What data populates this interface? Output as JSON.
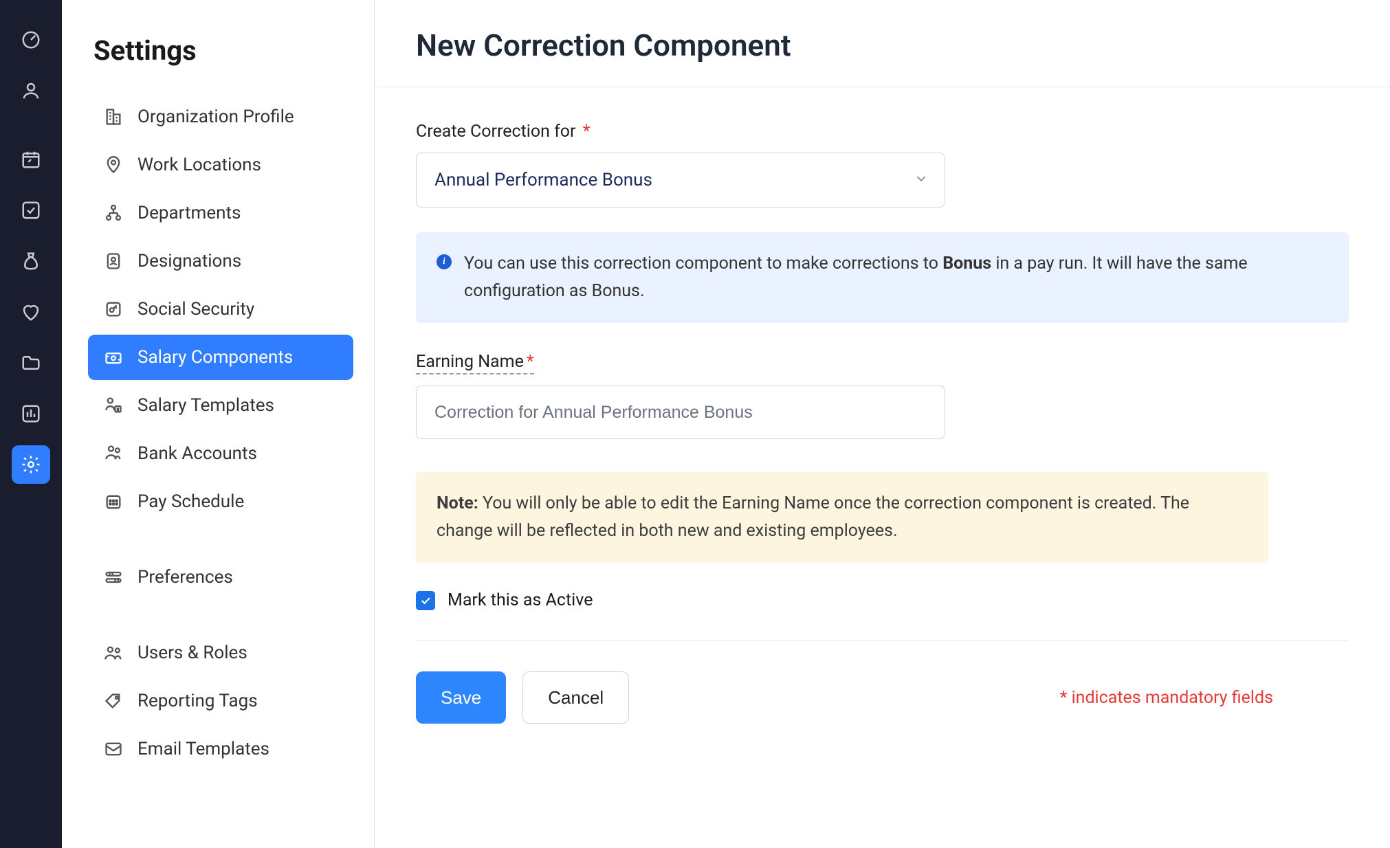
{
  "colors": {
    "rail_bg": "#1a1d2e",
    "accent": "#307dff",
    "info_bg": "#eaf2ff",
    "note_bg": "#fdf5e0",
    "required": "#e53935",
    "border": "#d0d5dd",
    "select_text": "#1e2b5a"
  },
  "rail": {
    "items": [
      {
        "name": "dashboard",
        "active": false
      },
      {
        "name": "people",
        "active": false
      },
      {
        "name": "calendar",
        "active": false
      },
      {
        "name": "approvals",
        "active": false
      },
      {
        "name": "payroll",
        "active": false
      },
      {
        "name": "benefits",
        "active": false
      },
      {
        "name": "documents",
        "active": false
      },
      {
        "name": "reports",
        "active": false
      },
      {
        "name": "settings",
        "active": true
      }
    ]
  },
  "sidebar": {
    "title": "Settings",
    "groups": [
      [
        {
          "label": "Organization Profile",
          "icon": "building"
        },
        {
          "label": "Work Locations",
          "icon": "pin"
        },
        {
          "label": "Departments",
          "icon": "org"
        },
        {
          "label": "Designations",
          "icon": "badge"
        },
        {
          "label": "Social Security",
          "icon": "key"
        },
        {
          "label": "Salary Components",
          "icon": "money",
          "active": true
        },
        {
          "label": "Salary Templates",
          "icon": "template"
        },
        {
          "label": "Bank Accounts",
          "icon": "bank"
        },
        {
          "label": "Pay Schedule",
          "icon": "schedule"
        }
      ],
      [
        {
          "label": "Preferences",
          "icon": "sliders"
        }
      ],
      [
        {
          "label": "Users & Roles",
          "icon": "users"
        },
        {
          "label": "Reporting Tags",
          "icon": "tag"
        },
        {
          "label": "Email Templates",
          "icon": "mail"
        }
      ]
    ]
  },
  "page": {
    "title": "New Correction Component",
    "create_for_label": "Create Correction for",
    "create_for_value": "Annual Performance Bonus",
    "info_prefix": "You can use this correction component to make corrections to ",
    "info_bold": "Bonus",
    "info_suffix": " in a pay run. It will have the same configuration as Bonus.",
    "earning_label": "Earning Name",
    "earning_value": "Correction for Annual Performance Bonus",
    "note_bold": "Note:",
    "note_text": " You will only be able to edit the Earning Name once the correction component is created. The change will be reflected in both new and existing employees.",
    "active_label": "Mark this as Active",
    "active_checked": true,
    "save": "Save",
    "cancel": "Cancel",
    "mandatory": "* indicates mandatory fields"
  }
}
